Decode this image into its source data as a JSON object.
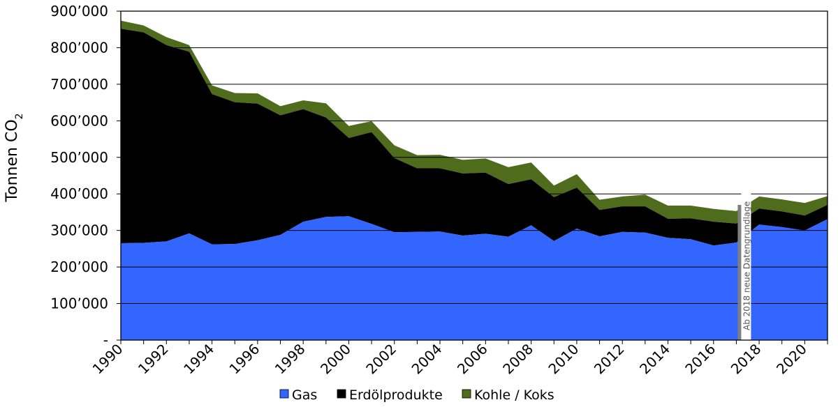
{
  "chart_data": {
    "type": "area",
    "stacked": true,
    "ylabel": "Tonnen CO",
    "ylabel_subscript": "2",
    "ylim": [
      0,
      900000
    ],
    "y_ticks": [
      {
        "value": 0,
        "label": "-"
      },
      {
        "value": 100000,
        "label": "100’000"
      },
      {
        "value": 200000,
        "label": "200’000"
      },
      {
        "value": 300000,
        "label": "300’000"
      },
      {
        "value": 400000,
        "label": "400’000"
      },
      {
        "value": 500000,
        "label": "500’000"
      },
      {
        "value": 600000,
        "label": "600’000"
      },
      {
        "value": 700000,
        "label": "700’000"
      },
      {
        "value": 800000,
        "label": "800’000"
      },
      {
        "value": 900000,
        "label": "900’000"
      }
    ],
    "x_tick_labels": [
      "1990",
      "1992",
      "1994",
      "1996",
      "1998",
      "2000",
      "2002",
      "2004",
      "2006",
      "2008",
      "2010",
      "2012",
      "2014",
      "2016",
      "2018",
      "2020"
    ],
    "grid": "horizontal",
    "legend_position": "bottom",
    "x": [
      1990,
      1991,
      1992,
      1993,
      1994,
      1995,
      1996,
      1997,
      1998,
      1999,
      2000,
      2001,
      2002,
      2003,
      2004,
      2005,
      2006,
      2007,
      2008,
      2009,
      2010,
      2011,
      2012,
      2013,
      2014,
      2015,
      2016,
      2017,
      2018,
      2019,
      2020,
      2021
    ],
    "series": [
      {
        "name": "Gas",
        "color": "#3366ff",
        "values": [
          265000,
          266000,
          270000,
          292000,
          262000,
          263000,
          273000,
          288000,
          324000,
          337000,
          339000,
          318000,
          295000,
          296000,
          297000,
          286000,
          291000,
          283000,
          314000,
          271000,
          305000,
          284000,
          296000,
          294000,
          280000,
          276000,
          259000,
          267000,
          316000,
          309000,
          300000,
          331000
        ]
      },
      {
        "name": "Erdölprodukte",
        "color": "#000000",
        "values": [
          587000,
          576000,
          537000,
          497000,
          411000,
          388000,
          374000,
          327000,
          308000,
          272000,
          214000,
          251000,
          203000,
          174000,
          173000,
          170000,
          167000,
          144000,
          126000,
          120000,
          112000,
          72000,
          70000,
          72000,
          52000,
          57000,
          65000,
          52000,
          44000,
          43000,
          41000,
          39000
        ]
      },
      {
        "name": "Kohle / Koks",
        "color": "#4f6b1c",
        "values": [
          22000,
          19000,
          22000,
          18000,
          24000,
          25000,
          28000,
          25000,
          24000,
          39000,
          33000,
          30000,
          35000,
          36000,
          37000,
          37000,
          39000,
          46000,
          46000,
          32000,
          37000,
          28000,
          27000,
          32000,
          36000,
          35000,
          35000,
          34000,
          33000,
          33000,
          34000,
          24000
        ]
      }
    ],
    "annotation": "Ab 2018 neue Datengrundlage",
    "break_after_year": 2017
  }
}
